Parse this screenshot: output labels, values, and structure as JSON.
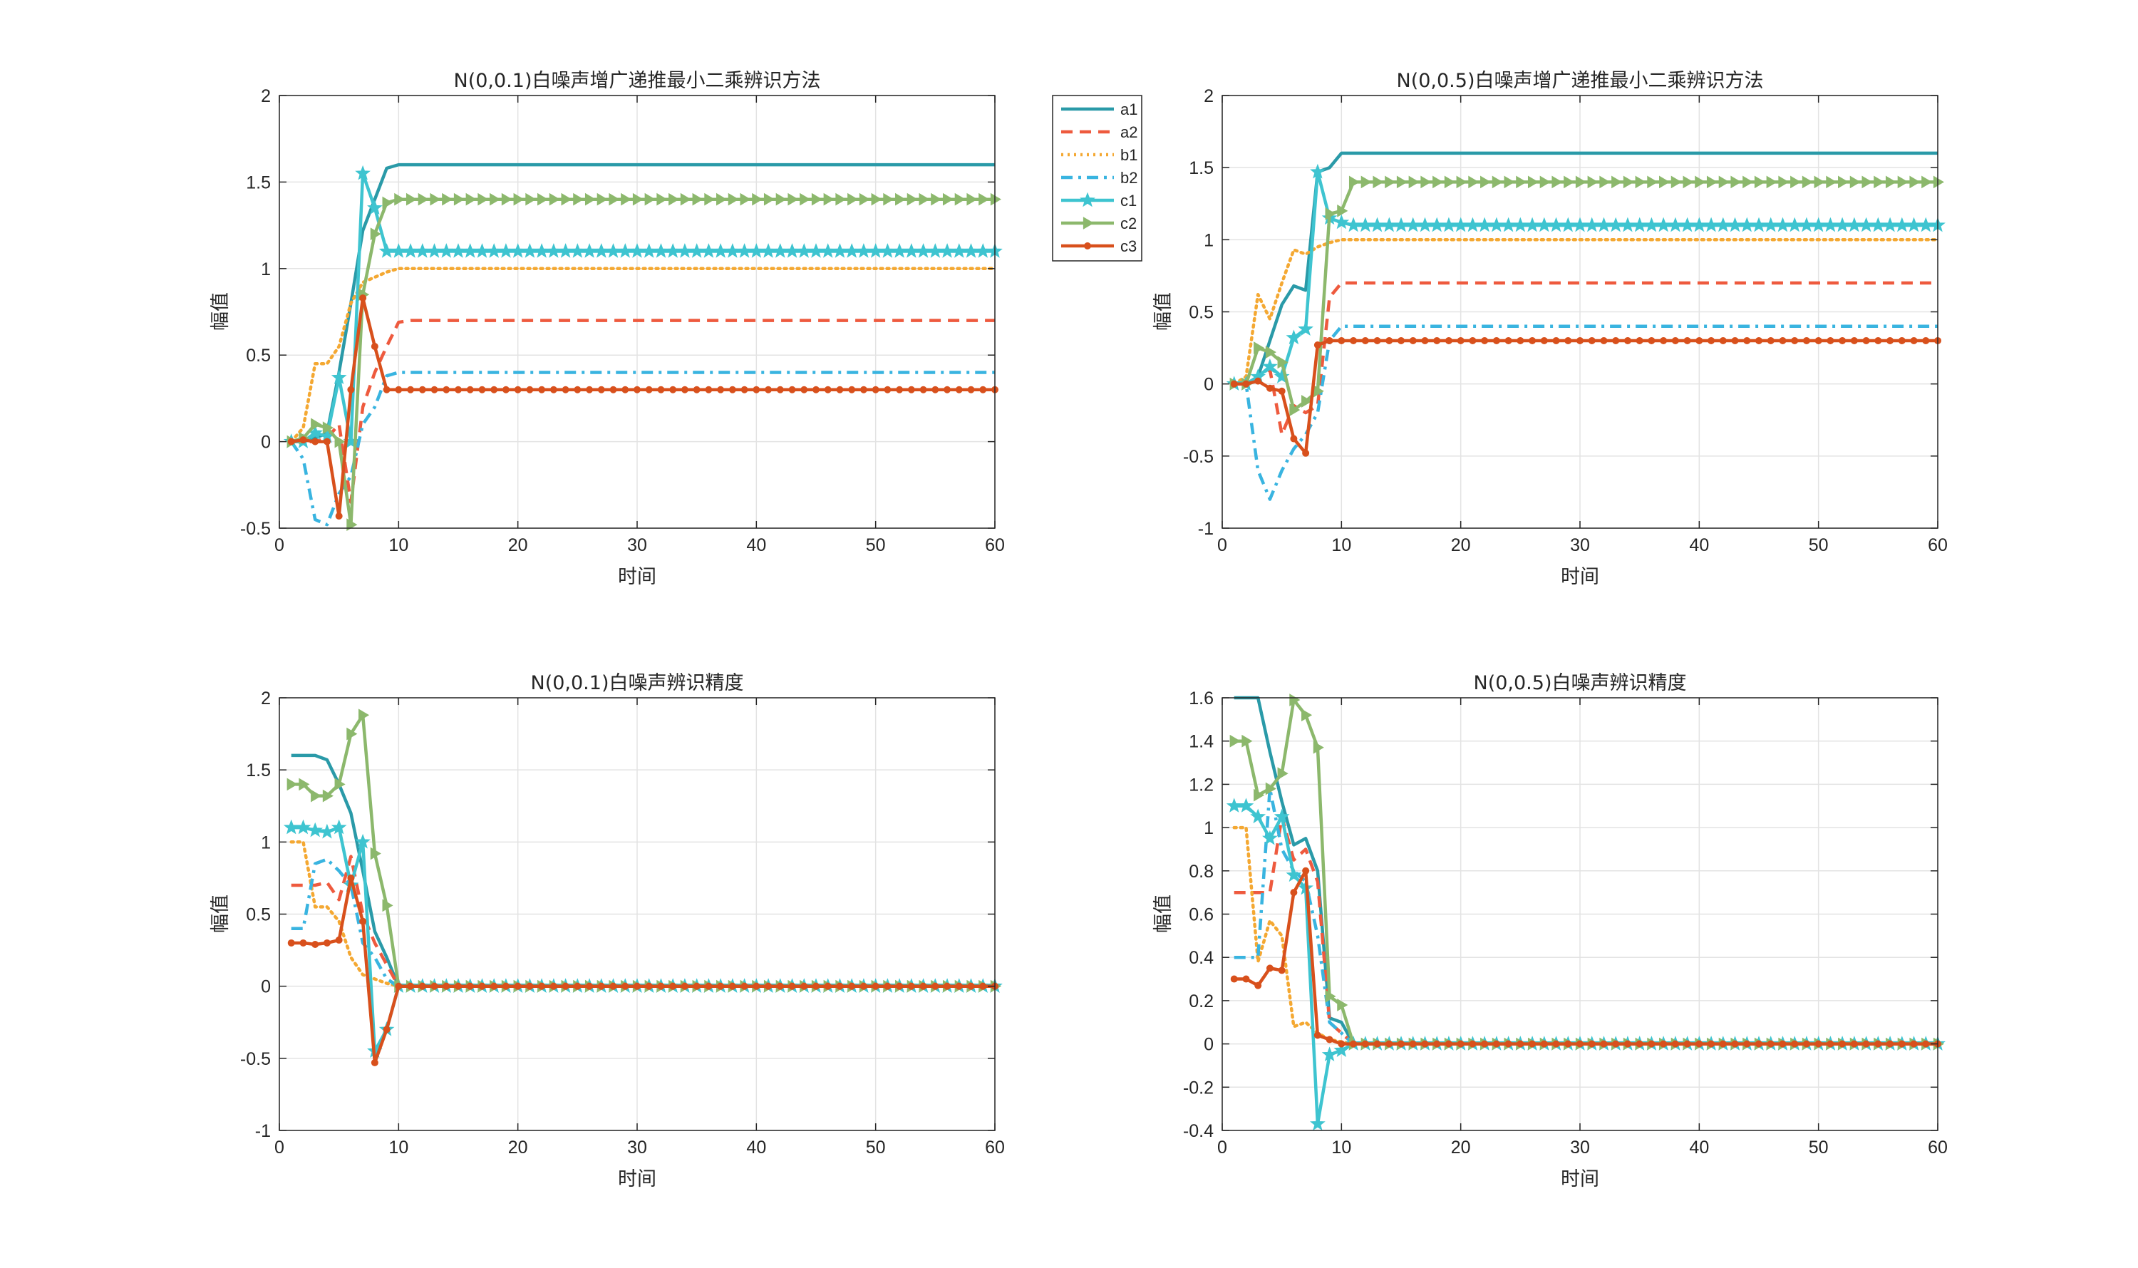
{
  "colors": {
    "a1": "#2a9aa8",
    "a2": "#ee5a3e",
    "b1": "#f4a832",
    "b2": "#39b4e0",
    "c1": "#3ec4d0",
    "c2": "#8cb86c",
    "c3": "#d8501c"
  },
  "legend": [
    "a1",
    "a2",
    "b1",
    "b2",
    "c1",
    "c2",
    "c3"
  ],
  "chart_data": [
    {
      "type": "line",
      "title": "N(0,0.1)白噪声增广递推最小二乘辨识方法",
      "xlabel": "时间",
      "ylabel": "幅值",
      "xlim": [
        0,
        60
      ],
      "ylim": [
        -0.5,
        2
      ],
      "xticks": [
        0,
        10,
        20,
        30,
        40,
        50,
        60
      ],
      "yticks": [
        -0.5,
        0,
        0.5,
        1,
        1.5,
        2
      ],
      "ytick_labels": [
        "-0.5",
        "0",
        "0.5",
        "1",
        "1.5",
        "2"
      ],
      "grid": true,
      "legend_position": "outside-right",
      "series": [
        {
          "name": "a1",
          "prefix": [
            0,
            0,
            0.02,
            0.05,
            0.4,
            0.8,
            1.22,
            1.4,
            1.58
          ],
          "final": 1.6
        },
        {
          "name": "a2",
          "prefix": [
            0,
            0,
            0,
            0.02,
            0.1,
            -0.35,
            0.2,
            0.4,
            0.55,
            0.69
          ],
          "final": 0.7
        },
        {
          "name": "b1",
          "prefix": [
            0,
            0.08,
            0.45,
            0.45,
            0.55,
            0.8,
            0.92,
            0.95,
            0.98
          ],
          "final": 1.0
        },
        {
          "name": "b2",
          "prefix": [
            0,
            -0.1,
            -0.45,
            -0.48,
            -0.3,
            -0.2,
            0.1,
            0.2,
            0.38
          ],
          "final": 0.4
        },
        {
          "name": "c1",
          "prefix": [
            0,
            0,
            0.05,
            0.03,
            0.37,
            0.0,
            1.55,
            1.35,
            1.1
          ],
          "final": 1.1
        },
        {
          "name": "c2",
          "prefix": [
            0,
            0.02,
            0.1,
            0.08,
            0.0,
            -0.48,
            0.85,
            1.2,
            1.38
          ],
          "final": 1.4
        },
        {
          "name": "c3",
          "prefix": [
            0,
            0.01,
            0.0,
            0.0,
            -0.43,
            0.3,
            0.83,
            0.55,
            0.3
          ],
          "final": 0.3
        }
      ]
    },
    {
      "type": "line",
      "title": "N(0,0.5)白噪声增广递推最小二乘辨识方法",
      "xlabel": "时间",
      "ylabel": "幅值",
      "xlim": [
        0,
        60
      ],
      "ylim": [
        -1,
        2
      ],
      "xticks": [
        0,
        10,
        20,
        30,
        40,
        50,
        60
      ],
      "yticks": [
        -1,
        -0.5,
        0,
        0.5,
        1,
        1.5,
        2
      ],
      "ytick_labels": [
        "-1",
        "-0.5",
        "0",
        "0.5",
        "1",
        "1.5",
        "2"
      ],
      "grid": true,
      "series": [
        {
          "name": "a1",
          "prefix": [
            0,
            0,
            0.05,
            0.3,
            0.55,
            0.68,
            0.65,
            1.47,
            1.5,
            1.6
          ],
          "final": 1.6
        },
        {
          "name": "a2",
          "prefix": [
            0,
            0,
            0.05,
            0.1,
            -0.35,
            -0.15,
            -0.2,
            -0.15,
            0.6,
            0.7
          ],
          "final": 0.7
        },
        {
          "name": "b1",
          "prefix": [
            0,
            0.05,
            0.62,
            0.45,
            0.7,
            0.93,
            0.9,
            0.95,
            0.98,
            1.0
          ],
          "final": 1.0
        },
        {
          "name": "b2",
          "prefix": [
            0,
            0,
            -0.6,
            -0.8,
            -0.6,
            -0.45,
            -0.35,
            -0.2,
            0.3,
            0.4
          ],
          "final": 0.4
        },
        {
          "name": "c1",
          "prefix": [
            0,
            0,
            0.05,
            0.12,
            0.05,
            0.32,
            0.38,
            1.47,
            1.15,
            1.12
          ],
          "final": 1.1
        },
        {
          "name": "c2",
          "prefix": [
            0,
            0,
            0.25,
            0.22,
            0.15,
            -0.18,
            -0.12,
            -0.05,
            1.18,
            1.2
          ],
          "final": 1.4
        },
        {
          "name": "c3",
          "prefix": [
            0,
            0,
            0.02,
            -0.03,
            -0.05,
            -0.38,
            -0.48,
            0.27,
            0.3
          ],
          "final": 0.3
        }
      ]
    },
    {
      "type": "line",
      "title": "N(0,0.1)白噪声辨识精度",
      "xlabel": "时间",
      "ylabel": "幅值",
      "xlim": [
        0,
        60
      ],
      "ylim": [
        -1,
        2
      ],
      "xticks": [
        0,
        10,
        20,
        30,
        40,
        50,
        60
      ],
      "yticks": [
        -1,
        -0.5,
        0,
        0.5,
        1,
        1.5,
        2
      ],
      "ytick_labels": [
        "-1",
        "-0.5",
        "0",
        "0.5",
        "1",
        "1.5",
        "2"
      ],
      "grid": true,
      "series": [
        {
          "name": "a1",
          "prefix": [
            1.6,
            1.6,
            1.6,
            1.57,
            1.4,
            1.2,
            0.8,
            0.38,
            0.2
          ],
          "final": 0
        },
        {
          "name": "a2",
          "prefix": [
            0.7,
            0.7,
            0.7,
            0.72,
            0.6,
            0.9,
            0.5,
            0.3,
            0.15
          ],
          "final": 0
        },
        {
          "name": "b1",
          "prefix": [
            1.0,
            1.0,
            0.55,
            0.55,
            0.45,
            0.2,
            0.08,
            0.05,
            0.02
          ],
          "final": 0
        },
        {
          "name": "b2",
          "prefix": [
            0.4,
            0.4,
            0.85,
            0.88,
            0.8,
            0.7,
            0.3,
            0.2,
            0.05
          ],
          "final": 0
        },
        {
          "name": "c1",
          "prefix": [
            1.1,
            1.1,
            1.08,
            1.07,
            1.1,
            0.7,
            1.0,
            -0.45,
            -0.3
          ],
          "final": 0
        },
        {
          "name": "c2",
          "prefix": [
            1.4,
            1.4,
            1.32,
            1.32,
            1.4,
            1.75,
            1.88,
            0.92,
            0.56
          ],
          "final": 0
        },
        {
          "name": "c3",
          "prefix": [
            0.3,
            0.3,
            0.29,
            0.3,
            0.32,
            0.75,
            0.45,
            -0.53,
            -0.3
          ],
          "final": 0
        }
      ]
    },
    {
      "type": "line",
      "title": "N(0,0.5)白噪声辨识精度",
      "xlabel": "时间",
      "ylabel": "幅值",
      "xlim": [
        0,
        60
      ],
      "ylim": [
        -0.4,
        1.6
      ],
      "xticks": [
        0,
        10,
        20,
        30,
        40,
        50,
        60
      ],
      "yticks": [
        -0.4,
        -0.2,
        0,
        0.2,
        0.4,
        0.6,
        0.8,
        1,
        1.2,
        1.4,
        1.6
      ],
      "ytick_labels": [
        "-0.4",
        "-0.2",
        "0",
        "0.2",
        "0.4",
        "0.6",
        "0.8",
        "1",
        "1.2",
        "1.4",
        "1.6"
      ],
      "grid": true,
      "series": [
        {
          "name": "a1",
          "prefix": [
            1.6,
            1.6,
            1.6,
            1.35,
            1.12,
            0.92,
            0.95,
            0.8,
            0.12,
            0.1
          ],
          "final": 0
        },
        {
          "name": "a2",
          "prefix": [
            0.7,
            0.7,
            0.7,
            0.7,
            1.05,
            0.85,
            0.9,
            0.75,
            0.1,
            0.05
          ],
          "final": 0
        },
        {
          "name": "b1",
          "prefix": [
            1.0,
            1.0,
            0.38,
            0.57,
            0.5,
            0.08,
            0.1,
            0.05,
            0.02,
            0.01
          ],
          "final": 0
        },
        {
          "name": "b2",
          "prefix": [
            0.4,
            0.4,
            0.4,
            1.18,
            0.9,
            0.8,
            0.75,
            0.5,
            0.1,
            0.05
          ],
          "final": 0
        },
        {
          "name": "c1",
          "prefix": [
            1.1,
            1.1,
            1.05,
            0.95,
            1.05,
            0.78,
            0.72,
            -0.37,
            -0.05,
            -0.03
          ],
          "final": 0
        },
        {
          "name": "c2",
          "prefix": [
            1.4,
            1.4,
            1.15,
            1.18,
            1.25,
            1.59,
            1.52,
            1.37,
            0.22,
            0.18
          ],
          "final": 0
        },
        {
          "name": "c3",
          "prefix": [
            0.3,
            0.3,
            0.27,
            0.35,
            0.34,
            0.7,
            0.8,
            0.04,
            0.02
          ],
          "final": 0
        }
      ]
    }
  ]
}
